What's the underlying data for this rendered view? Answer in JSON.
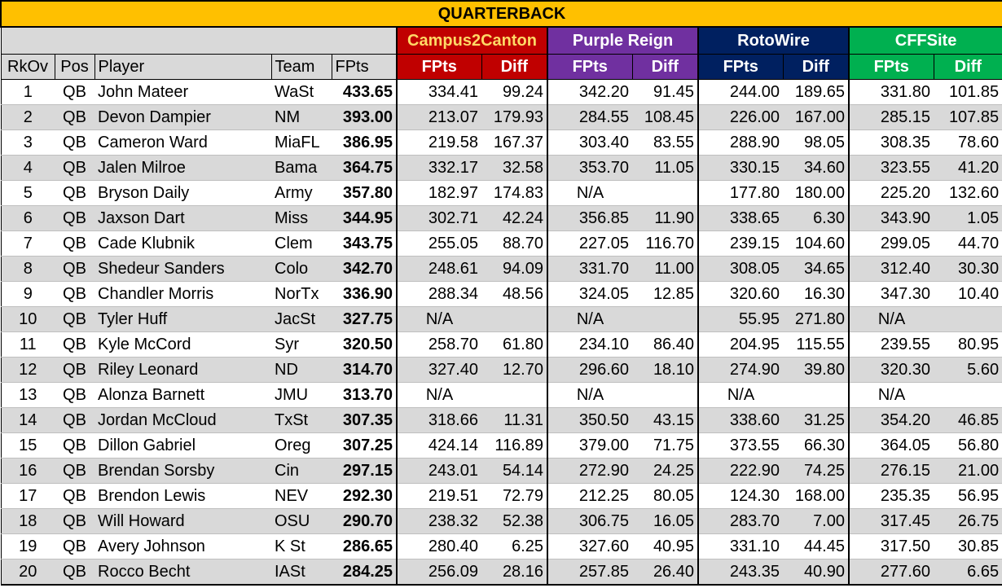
{
  "title": "QUARTERBACK",
  "base_headers": {
    "rk": "RkOv",
    "pos": "Pos",
    "player": "Player",
    "team": "Team",
    "fpts": "FPts"
  },
  "groups": [
    {
      "name": "Campus2Canton",
      "fpts_label": "FPts",
      "diff_label": "Diff"
    },
    {
      "name": "Purple Reign",
      "fpts_label": "FPts",
      "diff_label": "Diff"
    },
    {
      "name": "RotoWire",
      "fpts_label": "FPts",
      "diff_label": "Diff"
    },
    {
      "name": "CFFSite",
      "fpts_label": "FPts",
      "diff_label": "Diff"
    }
  ],
  "colors": {
    "title": "#ffc000",
    "campus2canton": "#c00000",
    "purple_reign": "#7030a0",
    "rotowire": "#002060",
    "cffsite": "#00b050"
  },
  "rows": [
    {
      "rk": "1",
      "pos": "QB",
      "player": "John Mateer",
      "team": "WaSt",
      "fpts": "433.65",
      "c2c_fpts": "334.41",
      "c2c_diff": "99.24",
      "pr_fpts": "342.20",
      "pr_diff": "91.45",
      "rw_fpts": "244.00",
      "rw_diff": "189.65",
      "cff_fpts": "331.80",
      "cff_diff": "101.85"
    },
    {
      "rk": "2",
      "pos": "QB",
      "player": "Devon Dampier",
      "team": "NM",
      "fpts": "393.00",
      "c2c_fpts": "213.07",
      "c2c_diff": "179.93",
      "pr_fpts": "284.55",
      "pr_diff": "108.45",
      "rw_fpts": "226.00",
      "rw_diff": "167.00",
      "cff_fpts": "285.15",
      "cff_diff": "107.85"
    },
    {
      "rk": "3",
      "pos": "QB",
      "player": "Cameron Ward",
      "team": "MiaFL",
      "fpts": "386.95",
      "c2c_fpts": "219.58",
      "c2c_diff": "167.37",
      "pr_fpts": "303.40",
      "pr_diff": "83.55",
      "rw_fpts": "288.90",
      "rw_diff": "98.05",
      "cff_fpts": "308.35",
      "cff_diff": "78.60"
    },
    {
      "rk": "4",
      "pos": "QB",
      "player": "Jalen Milroe",
      "team": "Bama",
      "fpts": "364.75",
      "c2c_fpts": "332.17",
      "c2c_diff": "32.58",
      "pr_fpts": "353.70",
      "pr_diff": "11.05",
      "rw_fpts": "330.15",
      "rw_diff": "34.60",
      "cff_fpts": "323.55",
      "cff_diff": "41.20"
    },
    {
      "rk": "5",
      "pos": "QB",
      "player": "Bryson Daily",
      "team": "Army",
      "fpts": "357.80",
      "c2c_fpts": "182.97",
      "c2c_diff": "174.83",
      "pr_fpts": "N/A",
      "pr_diff": "",
      "rw_fpts": "177.80",
      "rw_diff": "180.00",
      "cff_fpts": "225.20",
      "cff_diff": "132.60"
    },
    {
      "rk": "6",
      "pos": "QB",
      "player": "Jaxson Dart",
      "team": "Miss",
      "fpts": "344.95",
      "c2c_fpts": "302.71",
      "c2c_diff": "42.24",
      "pr_fpts": "356.85",
      "pr_diff": "11.90",
      "rw_fpts": "338.65",
      "rw_diff": "6.30",
      "cff_fpts": "343.90",
      "cff_diff": "1.05"
    },
    {
      "rk": "7",
      "pos": "QB",
      "player": "Cade Klubnik",
      "team": "Clem",
      "fpts": "343.75",
      "c2c_fpts": "255.05",
      "c2c_diff": "88.70",
      "pr_fpts": "227.05",
      "pr_diff": "116.70",
      "rw_fpts": "239.15",
      "rw_diff": "104.60",
      "cff_fpts": "299.05",
      "cff_diff": "44.70"
    },
    {
      "rk": "8",
      "pos": "QB",
      "player": "Shedeur Sanders",
      "team": "Colo",
      "fpts": "342.70",
      "c2c_fpts": "248.61",
      "c2c_diff": "94.09",
      "pr_fpts": "331.70",
      "pr_diff": "11.00",
      "rw_fpts": "308.05",
      "rw_diff": "34.65",
      "cff_fpts": "312.40",
      "cff_diff": "30.30"
    },
    {
      "rk": "9",
      "pos": "QB",
      "player": "Chandler Morris",
      "team": "NorTx",
      "fpts": "336.90",
      "c2c_fpts": "288.34",
      "c2c_diff": "48.56",
      "pr_fpts": "324.05",
      "pr_diff": "12.85",
      "rw_fpts": "320.60",
      "rw_diff": "16.30",
      "cff_fpts": "347.30",
      "cff_diff": "10.40"
    },
    {
      "rk": "10",
      "pos": "QB",
      "player": "Tyler Huff",
      "team": "JacSt",
      "fpts": "327.75",
      "c2c_fpts": "N/A",
      "c2c_diff": "",
      "pr_fpts": "N/A",
      "pr_diff": "",
      "rw_fpts": "55.95",
      "rw_diff": "271.80",
      "cff_fpts": "N/A",
      "cff_diff": ""
    },
    {
      "rk": "11",
      "pos": "QB",
      "player": "Kyle McCord",
      "team": "Syr",
      "fpts": "320.50",
      "c2c_fpts": "258.70",
      "c2c_diff": "61.80",
      "pr_fpts": "234.10",
      "pr_diff": "86.40",
      "rw_fpts": "204.95",
      "rw_diff": "115.55",
      "cff_fpts": "239.55",
      "cff_diff": "80.95"
    },
    {
      "rk": "12",
      "pos": "QB",
      "player": "Riley Leonard",
      "team": "ND",
      "fpts": "314.70",
      "c2c_fpts": "327.40",
      "c2c_diff": "12.70",
      "pr_fpts": "296.60",
      "pr_diff": "18.10",
      "rw_fpts": "274.90",
      "rw_diff": "39.80",
      "cff_fpts": "320.30",
      "cff_diff": "5.60"
    },
    {
      "rk": "13",
      "pos": "QB",
      "player": "Alonza Barnett",
      "team": "JMU",
      "fpts": "313.70",
      "c2c_fpts": "N/A",
      "c2c_diff": "",
      "pr_fpts": "N/A",
      "pr_diff": "",
      "rw_fpts": "N/A",
      "rw_diff": "",
      "cff_fpts": "N/A",
      "cff_diff": ""
    },
    {
      "rk": "14",
      "pos": "QB",
      "player": "Jordan McCloud",
      "team": "TxSt",
      "fpts": "307.35",
      "c2c_fpts": "318.66",
      "c2c_diff": "11.31",
      "pr_fpts": "350.50",
      "pr_diff": "43.15",
      "rw_fpts": "338.60",
      "rw_diff": "31.25",
      "cff_fpts": "354.20",
      "cff_diff": "46.85"
    },
    {
      "rk": "15",
      "pos": "QB",
      "player": "Dillon Gabriel",
      "team": "Oreg",
      "fpts": "307.25",
      "c2c_fpts": "424.14",
      "c2c_diff": "116.89",
      "pr_fpts": "379.00",
      "pr_diff": "71.75",
      "rw_fpts": "373.55",
      "rw_diff": "66.30",
      "cff_fpts": "364.05",
      "cff_diff": "56.80"
    },
    {
      "rk": "16",
      "pos": "QB",
      "player": "Brendan Sorsby",
      "team": "Cin",
      "fpts": "297.15",
      "c2c_fpts": "243.01",
      "c2c_diff": "54.14",
      "pr_fpts": "272.90",
      "pr_diff": "24.25",
      "rw_fpts": "222.90",
      "rw_diff": "74.25",
      "cff_fpts": "276.15",
      "cff_diff": "21.00"
    },
    {
      "rk": "17",
      "pos": "QB",
      "player": "Brendon Lewis",
      "team": "NEV",
      "fpts": "292.30",
      "c2c_fpts": "219.51",
      "c2c_diff": "72.79",
      "pr_fpts": "212.25",
      "pr_diff": "80.05",
      "rw_fpts": "124.30",
      "rw_diff": "168.00",
      "cff_fpts": "235.35",
      "cff_diff": "56.95"
    },
    {
      "rk": "18",
      "pos": "QB",
      "player": "Will Howard",
      "team": "OSU",
      "fpts": "290.70",
      "c2c_fpts": "238.32",
      "c2c_diff": "52.38",
      "pr_fpts": "306.75",
      "pr_diff": "16.05",
      "rw_fpts": "283.70",
      "rw_diff": "7.00",
      "cff_fpts": "317.45",
      "cff_diff": "26.75"
    },
    {
      "rk": "19",
      "pos": "QB",
      "player": "Avery Johnson",
      "team": "K St",
      "fpts": "286.65",
      "c2c_fpts": "280.40",
      "c2c_diff": "6.25",
      "pr_fpts": "327.60",
      "pr_diff": "40.95",
      "rw_fpts": "331.10",
      "rw_diff": "44.45",
      "cff_fpts": "317.50",
      "cff_diff": "30.85"
    },
    {
      "rk": "20",
      "pos": "QB",
      "player": "Rocco Becht",
      "team": "IASt",
      "fpts": "284.25",
      "c2c_fpts": "256.09",
      "c2c_diff": "28.16",
      "pr_fpts": "257.85",
      "pr_diff": "26.40",
      "rw_fpts": "243.35",
      "rw_diff": "40.90",
      "cff_fpts": "277.60",
      "cff_diff": "6.65"
    }
  ]
}
